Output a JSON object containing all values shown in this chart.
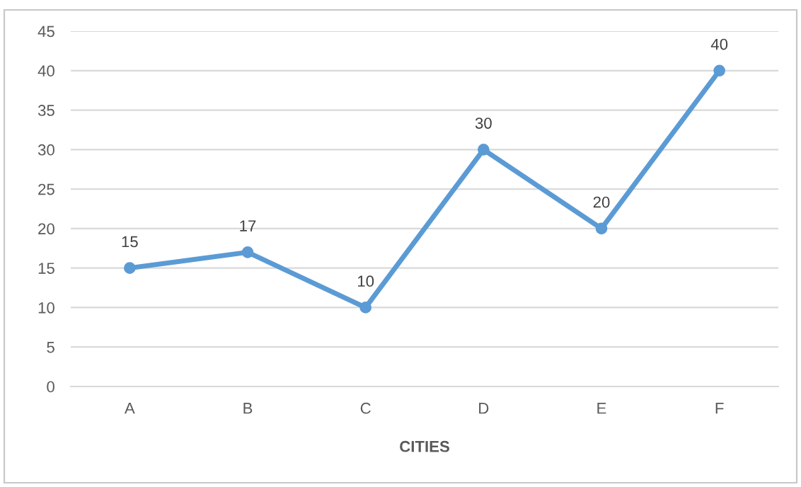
{
  "chart_data": {
    "type": "line",
    "xlabel": "CITIES",
    "categories": [
      "A",
      "B",
      "C",
      "D",
      "E",
      "F"
    ],
    "series": [
      {
        "color": "#5b9bd5",
        "values": [
          15,
          17,
          10,
          30,
          20,
          40
        ]
      }
    ],
    "ylim": [
      0,
      45
    ],
    "yticks": [
      0,
      5,
      10,
      15,
      20,
      25,
      30,
      35,
      40,
      45
    ],
    "grid": "y",
    "marker": "circle",
    "line_style": "solid",
    "data_labels": true
  }
}
